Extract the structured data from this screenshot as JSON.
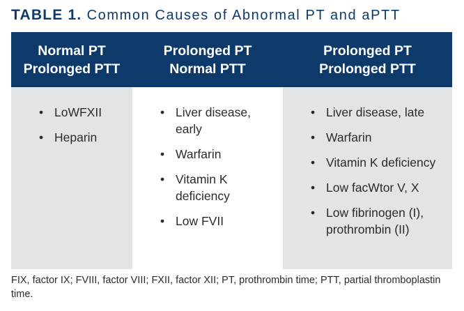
{
  "title": {
    "lead": "TABLE 1.",
    "rest": "Common Causes of Abnormal PT and aPTT"
  },
  "columns": [
    {
      "header": [
        "Normal PT",
        "Prolonged PTT"
      ],
      "items": [
        "LoWFXII",
        "Heparin"
      ]
    },
    {
      "header": [
        "Prolonged PT",
        "Normal PTT"
      ],
      "items": [
        "Liver disease, early",
        "Warfarin",
        "Vitamin K deficiency",
        "Low FVII"
      ]
    },
    {
      "header": [
        "Prolonged PT",
        "Prolonged PTT"
      ],
      "items": [
        "Liver disease, late",
        "Warfarin",
        "Vitamin K deficiency",
        "Low facWtor V, X",
        "Low fibrinogen (I), prothrombin (II)"
      ]
    }
  ],
  "footnote": "FIX, factor IX; FVIII, factor VIII; FXII, factor XII; PT, prothrombin time; PTT, partial thromboplastin time."
}
